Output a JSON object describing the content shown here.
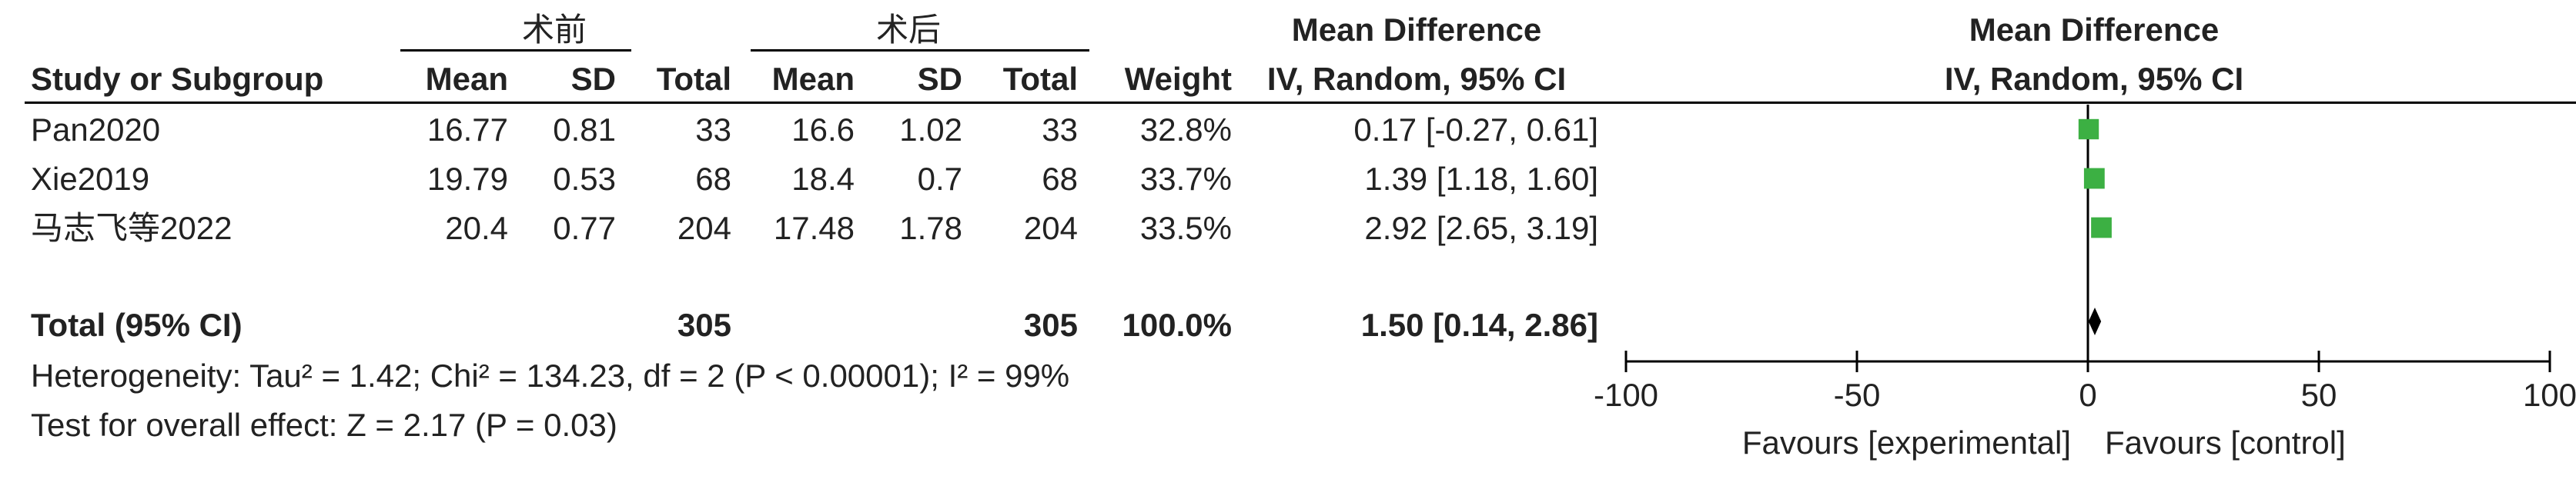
{
  "group_headers": {
    "experimental": "术前",
    "control": "术后"
  },
  "columns": {
    "study": "Study or Subgroup",
    "mean": "Mean",
    "sd": "SD",
    "total": "Total",
    "weight": "Weight",
    "md_title": "Mean Difference",
    "md_method": "IV, Random, 95% CI",
    "plot_title": "Mean Difference",
    "plot_method": "IV, Random, 95% CI"
  },
  "rows": [
    {
      "study": "Pan2020",
      "e_mean": "16.77",
      "e_sd": "0.81",
      "e_total": "33",
      "c_mean": "16.6",
      "c_sd": "1.02",
      "c_total": "33",
      "weight": "32.8%",
      "ci": "0.17 [-0.27, 0.61]"
    },
    {
      "study": "Xie2019",
      "e_mean": "19.79",
      "e_sd": "0.53",
      "e_total": "68",
      "c_mean": "18.4",
      "c_sd": "0.7",
      "c_total": "68",
      "weight": "33.7%",
      "ci": "1.39 [1.18, 1.60]"
    },
    {
      "study": "马志飞等2022",
      "e_mean": "20.4",
      "e_sd": "0.77",
      "e_total": "204",
      "c_mean": "17.48",
      "c_sd": "1.78",
      "c_total": "204",
      "weight": "33.5%",
      "ci": "2.92 [2.65, 3.19]"
    }
  ],
  "total": {
    "label": "Total (95% CI)",
    "e_total": "305",
    "c_total": "305",
    "weight": "100.0%",
    "ci": "1.50 [0.14, 2.86]"
  },
  "heterogeneity": "Heterogeneity: Tau² = 1.42; Chi² = 134.23, df = 2 (P < 0.00001); I² = 99%",
  "overall_effect": "Test for overall effect: Z = 2.17 (P = 0.03)",
  "chart_data": {
    "type": "forest",
    "title": "Mean Difference",
    "subtitle": "IV, Random, 95% CI",
    "xlim": [
      -100,
      100
    ],
    "ticks": [
      -100,
      -50,
      0,
      50,
      100
    ],
    "tick_labels": [
      "-100",
      "-50",
      "0",
      "50",
      "100"
    ],
    "left_label": "Favours [experimental]",
    "right_label": "Favours [control]",
    "marker_color": "#3cb043",
    "studies": [
      {
        "name": "Pan2020",
        "md": 0.17,
        "lower": -0.27,
        "upper": 0.61,
        "weight": 32.8
      },
      {
        "name": "Xie2019",
        "md": 1.39,
        "lower": 1.18,
        "upper": 1.6,
        "weight": 33.7
      },
      {
        "name": "马志飞等2022",
        "md": 2.92,
        "lower": 2.65,
        "upper": 3.19,
        "weight": 33.5
      }
    ],
    "pooled": {
      "md": 1.5,
      "lower": 0.14,
      "upper": 2.86
    }
  }
}
